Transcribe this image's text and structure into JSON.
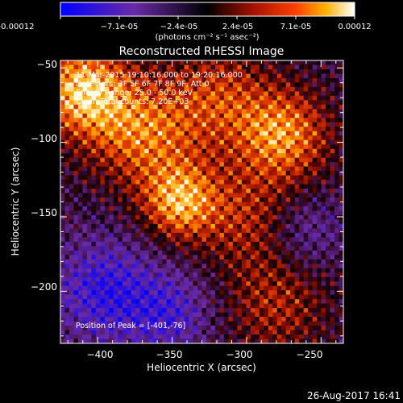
{
  "chart_data": {
    "type": "heatmap",
    "title": "Reconstructed RHESSI Image",
    "xlabel": "Heliocentric X (arcsec)",
    "ylabel": "Heliocentric Y (arcsec)",
    "xlim": [
      -425,
      -235
    ],
    "ylim": [
      -45,
      -235
    ],
    "x_ticks": [
      -400,
      -350,
      -300,
      -250
    ],
    "x_tick_labels": [
      "−400",
      "−350",
      "−300",
      "−250"
    ],
    "y_ticks": [
      -50,
      -100,
      -150,
      -200
    ],
    "y_tick_labels": [
      "−50",
      "−100",
      "−150",
      "−200"
    ],
    "colorbar": {
      "range": [
        -0.00012,
        0.00012
      ],
      "tick_labels": [
        "-0.00012",
        "−7.1e-05",
        "−2.4e-05",
        "2.4e-05",
        "7.1e-05",
        "0.00012"
      ],
      "units": "(photons cm⁻² s⁻¹ asec⁻²)"
    },
    "colors": {
      "low": "#0000ff",
      "mid_low": "#8030a0",
      "zero": "#000000",
      "mid_high": "#c02000",
      "high": "#ffa000",
      "max": "#ffffff"
    },
    "annotations": {
      "time": "11-Mar-2015 19:10:16.000 to 19:20:16.000",
      "detectors": "Detectors: 3F 5F 6F 7F 8F 9F, Att 0",
      "energy": "Energy Range: 25.0 - 50.0 keV",
      "counts": "Clean    Total counts: 7.20E+03",
      "peak": "Position of Peak = [-401,-76]"
    },
    "peak": {
      "x": -401,
      "y": -76
    },
    "intensity_features": [
      {
        "x": -410,
        "y": -65,
        "sigma": 22,
        "amp": 1.0
      },
      {
        "x": -345,
        "y": -140,
        "sigma": 18,
        "amp": 0.85
      },
      {
        "x": -370,
        "y": -95,
        "sigma": 25,
        "amp": 0.7
      },
      {
        "x": -275,
        "y": -95,
        "sigma": 22,
        "amp": 0.8
      },
      {
        "x": -320,
        "y": -70,
        "sigma": 25,
        "amp": 0.55
      },
      {
        "x": -300,
        "y": -150,
        "sigma": 25,
        "amp": 0.45
      },
      {
        "x": -280,
        "y": -210,
        "sigma": 25,
        "amp": 0.45
      },
      {
        "x": -395,
        "y": -200,
        "sigma": 25,
        "amp": -0.6
      },
      {
        "x": -350,
        "y": -215,
        "sigma": 20,
        "amp": -0.45
      },
      {
        "x": -260,
        "y": -160,
        "sigma": 18,
        "amp": -0.35
      }
    ]
  },
  "footer": {
    "date": "26-Aug-2017 16:41"
  }
}
